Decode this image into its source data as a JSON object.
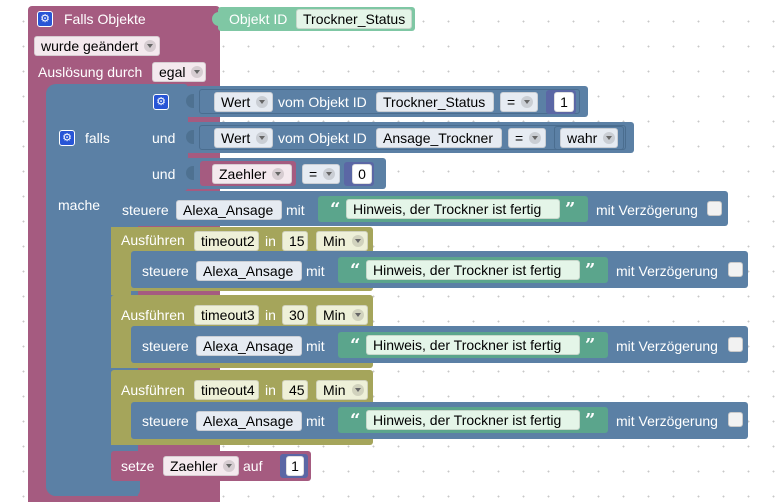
{
  "trigger": {
    "title": "Falls Objekte",
    "object_id_label": "Objekt ID",
    "object_id_value": "Trockner_Status",
    "change_mode": "wurde geändert",
    "trigger_by_label": "Auslösung durch",
    "trigger_by_value": "egal"
  },
  "if_block": {
    "if_label": "falls",
    "do_label": "mache",
    "and_label_1": "und",
    "and_label_2": "und"
  },
  "conditions": [
    {
      "prop": "Wert",
      "of_object": "vom Objekt ID",
      "object": "Trockner_Status",
      "op": "=",
      "value": "1"
    },
    {
      "prop": "Wert",
      "of_object": "vom Objekt ID",
      "object": "Ansage_Trockner",
      "op": "=",
      "value": "wahr"
    },
    {
      "var": "Zaehler",
      "op": "=",
      "value": "0"
    }
  ],
  "speak": {
    "control_label": "steuere",
    "object": "Alexa_Ansage",
    "with_label": "mit",
    "text": "Hinweis,  der Trockner ist fertig",
    "delay_label": "mit Verzögerung",
    "open_quote": "“",
    "close_quote": "”"
  },
  "timeouts": [
    {
      "exec_label": "Ausführen",
      "name": "timeout2",
      "in_label": "in",
      "value": "15",
      "unit": "Min"
    },
    {
      "exec_label": "Ausführen",
      "name": "timeout3",
      "in_label": "in",
      "value": "30",
      "unit": "Min"
    },
    {
      "exec_label": "Ausführen",
      "name": "timeout4",
      "in_label": "in",
      "value": "45",
      "unit": "Min"
    }
  ],
  "set_var": {
    "label": "setze",
    "var": "Zaehler",
    "to_label": "auf",
    "value": "1"
  },
  "colors": {
    "trigger": "#a55b80",
    "logic": "#5b80a5",
    "text": "#5ba58c",
    "variable": "#a55b80",
    "timeout": "#a5a55b",
    "math": "#5b67a5"
  },
  "icons": {
    "gear": "gear-icon",
    "checkbox": "checkbox-icon"
  }
}
